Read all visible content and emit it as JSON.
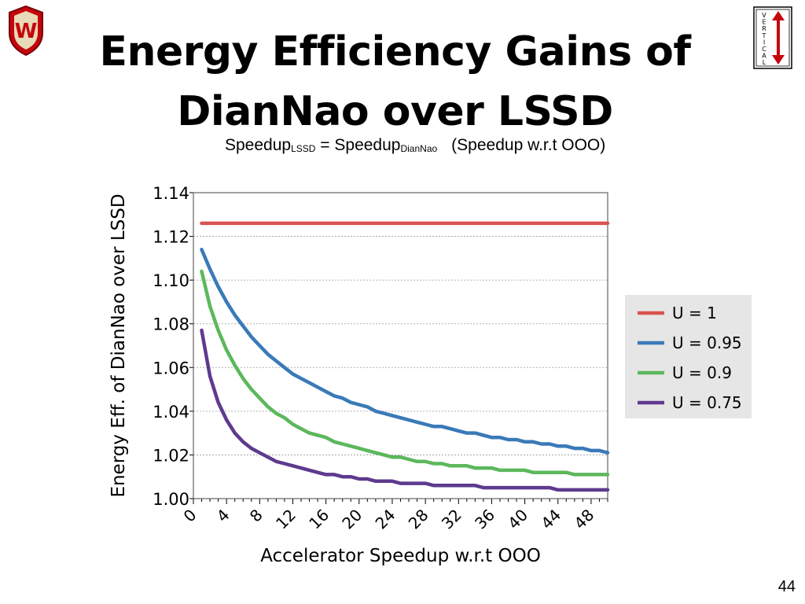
{
  "slide": {
    "title_line1": "Energy Efficiency Gains of",
    "title_line2": "DianNao over LSSD",
    "subtitle": {
      "part1": "Speedup",
      "part1_sub": "LSSD",
      "equals": " = Speedup",
      "part2_sub": "DianNao",
      "note": "(Speedup w.r.t OOO)"
    },
    "page_number": "44",
    "logo_letter": "W",
    "vertical_logo_letters": [
      "V",
      "E",
      "R",
      "T",
      "I",
      "C",
      "A",
      "L"
    ]
  },
  "chart_data": {
    "type": "line",
    "title": "",
    "xlabel": "Accelerator Speedup w.r.t OOO",
    "ylabel": "Energy Eff. of DianNao over LSSD",
    "xlim": [
      0,
      50
    ],
    "ylim": [
      1.0,
      1.14
    ],
    "x_ticks": [
      "0",
      "4",
      "8",
      "12",
      "16",
      "20",
      "24",
      "28",
      "32",
      "36",
      "40",
      "44",
      "48"
    ],
    "y_ticks": [
      "1.00",
      "1.02",
      "1.04",
      "1.06",
      "1.08",
      "1.10",
      "1.12",
      "1.14"
    ],
    "grid": true,
    "legend_position": "right",
    "x": [
      1,
      2,
      3,
      4,
      5,
      6,
      7,
      8,
      9,
      10,
      11,
      12,
      13,
      14,
      15,
      16,
      17,
      18,
      19,
      20,
      21,
      22,
      23,
      24,
      25,
      26,
      27,
      28,
      29,
      30,
      31,
      32,
      33,
      34,
      35,
      36,
      37,
      38,
      39,
      40,
      41,
      42,
      43,
      44,
      45,
      46,
      47,
      48,
      49,
      50
    ],
    "series": [
      {
        "name": "U = 1",
        "color": "#d9534f",
        "values": [
          1.126,
          1.126,
          1.126,
          1.126,
          1.126,
          1.126,
          1.126,
          1.126,
          1.126,
          1.126,
          1.126,
          1.126,
          1.126,
          1.126,
          1.126,
          1.126,
          1.126,
          1.126,
          1.126,
          1.126,
          1.126,
          1.126,
          1.126,
          1.126,
          1.126,
          1.126,
          1.126,
          1.126,
          1.126,
          1.126,
          1.126,
          1.126,
          1.126,
          1.126,
          1.126,
          1.126,
          1.126,
          1.126,
          1.126,
          1.126,
          1.126,
          1.126,
          1.126,
          1.126,
          1.126,
          1.126,
          1.126,
          1.126,
          1.126,
          1.126
        ]
      },
      {
        "name": "U = 0.95",
        "color": "#3a7ab8",
        "values": [
          1.114,
          1.105,
          1.097,
          1.09,
          1.084,
          1.079,
          1.074,
          1.07,
          1.066,
          1.063,
          1.06,
          1.057,
          1.055,
          1.053,
          1.051,
          1.049,
          1.047,
          1.046,
          1.044,
          1.043,
          1.042,
          1.04,
          1.039,
          1.038,
          1.037,
          1.036,
          1.035,
          1.034,
          1.033,
          1.033,
          1.032,
          1.031,
          1.03,
          1.03,
          1.029,
          1.028,
          1.028,
          1.027,
          1.027,
          1.026,
          1.026,
          1.025,
          1.025,
          1.024,
          1.024,
          1.023,
          1.023,
          1.022,
          1.022,
          1.021
        ]
      },
      {
        "name": "U = 0.9",
        "color": "#5cb85c",
        "values": [
          1.104,
          1.088,
          1.077,
          1.068,
          1.061,
          1.055,
          1.05,
          1.046,
          1.042,
          1.039,
          1.037,
          1.034,
          1.032,
          1.03,
          1.029,
          1.028,
          1.026,
          1.025,
          1.024,
          1.023,
          1.022,
          1.021,
          1.02,
          1.019,
          1.019,
          1.018,
          1.017,
          1.017,
          1.016,
          1.016,
          1.015,
          1.015,
          1.015,
          1.014,
          1.014,
          1.014,
          1.013,
          1.013,
          1.013,
          1.013,
          1.012,
          1.012,
          1.012,
          1.012,
          1.012,
          1.011,
          1.011,
          1.011,
          1.011,
          1.011
        ]
      },
      {
        "name": "U = 0.75",
        "color": "#5e3a8e",
        "values": [
          1.077,
          1.056,
          1.044,
          1.036,
          1.03,
          1.026,
          1.023,
          1.021,
          1.019,
          1.017,
          1.016,
          1.015,
          1.014,
          1.013,
          1.012,
          1.011,
          1.011,
          1.01,
          1.01,
          1.009,
          1.009,
          1.008,
          1.008,
          1.008,
          1.007,
          1.007,
          1.007,
          1.007,
          1.006,
          1.006,
          1.006,
          1.006,
          1.006,
          1.006,
          1.005,
          1.005,
          1.005,
          1.005,
          1.005,
          1.005,
          1.005,
          1.005,
          1.005,
          1.004,
          1.004,
          1.004,
          1.004,
          1.004,
          1.004,
          1.004
        ]
      }
    ]
  }
}
